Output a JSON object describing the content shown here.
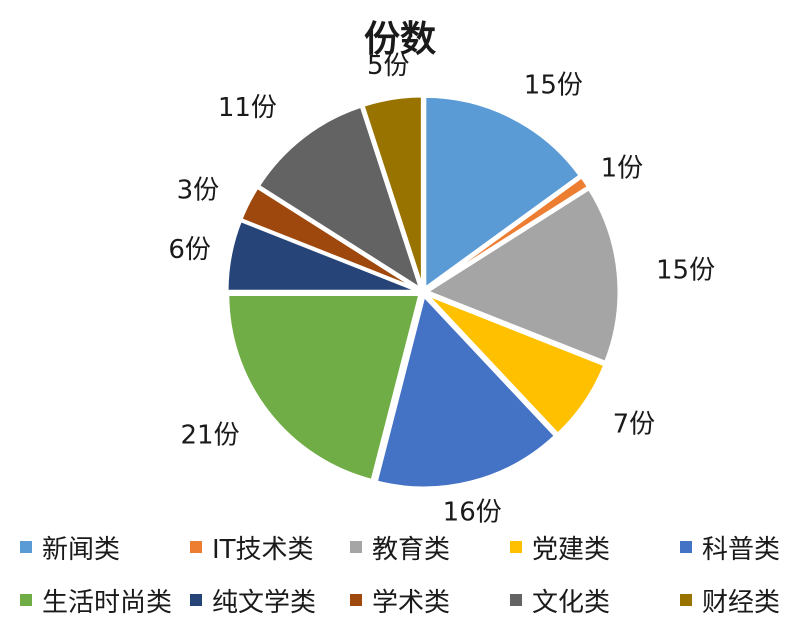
{
  "chart_data": {
    "type": "pie",
    "title": "份数",
    "value_unit": "份",
    "categories": [
      "新闻类",
      "IT技术类",
      "教育类",
      "党建类",
      "科普类",
      "生活时尚类",
      "纯文学类",
      "学术类",
      "文化类",
      "财经类"
    ],
    "values": [
      15,
      1,
      15,
      7,
      16,
      21,
      6,
      3,
      11,
      5
    ],
    "colors": [
      "#5b9bd5",
      "#ed7d31",
      "#a5a5a5",
      "#ffc000",
      "#4472c4",
      "#70ad47",
      "#264478",
      "#9e480e",
      "#636363",
      "#997300"
    ],
    "data_labels": [
      "15份",
      "1份",
      "15份",
      "7份",
      "16份",
      "21份",
      "6份",
      "3份",
      "11份",
      "5份"
    ],
    "legend_position": "bottom",
    "start_angle": "12 o'clock",
    "direction": "clockwise",
    "exploded": true
  }
}
